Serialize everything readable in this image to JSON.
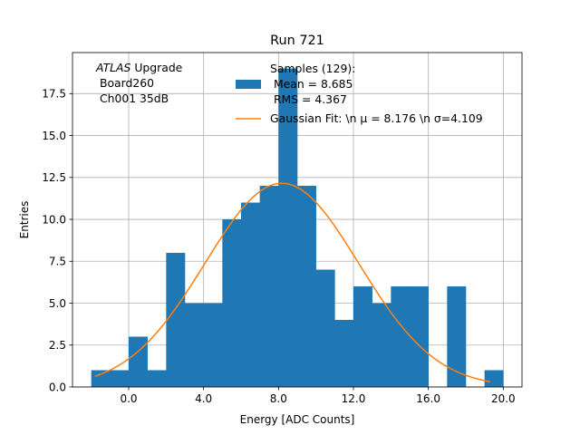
{
  "chart_data": {
    "type": "bar",
    "title": "Run 721",
    "xlabel": "Energy [ADC Counts]",
    "ylabel": "Entries",
    "xlim": [
      -3.0,
      21.0
    ],
    "ylim": [
      0,
      19.95
    ],
    "grid": true,
    "x_ticks": [
      0,
      4,
      8,
      12,
      16,
      20
    ],
    "x_tick_labels": [
      "0.0",
      "4.0",
      "8.0",
      "12.0",
      "16.0",
      "20.0"
    ],
    "y_ticks": [
      0,
      2.5,
      5,
      7.5,
      10,
      12.5,
      15,
      17.5
    ],
    "y_tick_labels": [
      "0.0",
      "2.5",
      "5.0",
      "7.5",
      "10.0",
      "12.5",
      "15.0",
      "17.5"
    ],
    "bin_edges": [
      -2.0,
      -1.0,
      0.0,
      1.0,
      2.0,
      3.0,
      4.0,
      5.0,
      6.0,
      7.0,
      8.0,
      9.0,
      10.0,
      11.0,
      12.0,
      13.0,
      14.0,
      15.0,
      16.0,
      17.0,
      18.0,
      19.0,
      20.0
    ],
    "counts": [
      1,
      1,
      3,
      1,
      8,
      5,
      5,
      10,
      11,
      12,
      19,
      12,
      7,
      4,
      6,
      5,
      6,
      6,
      0,
      6,
      0,
      1
    ],
    "fit": {
      "type": "gaussian",
      "amplitude": 12.15,
      "mu": 8.176,
      "sigma": 4.109,
      "x_range": [
        -1.8,
        19.3
      ]
    },
    "annotation": {
      "italic_part": "ATLAS",
      "line1_rest": " Upgrade",
      "line2": " Board260",
      "line3": " Ch001 35dB"
    },
    "legend": {
      "placement": "top-center",
      "histogram": {
        "line1": "Samples (129):",
        "line2": " Mean = 8.685",
        "line3": " RMS = 4.367"
      },
      "fit_label": "Gaussian Fit: \\n μ = 8.176 \\n σ=4.109"
    },
    "colors": {
      "bars": "#1f77b4",
      "fit_line": "#ff7f0e",
      "grid": "#b0b0b0"
    }
  }
}
